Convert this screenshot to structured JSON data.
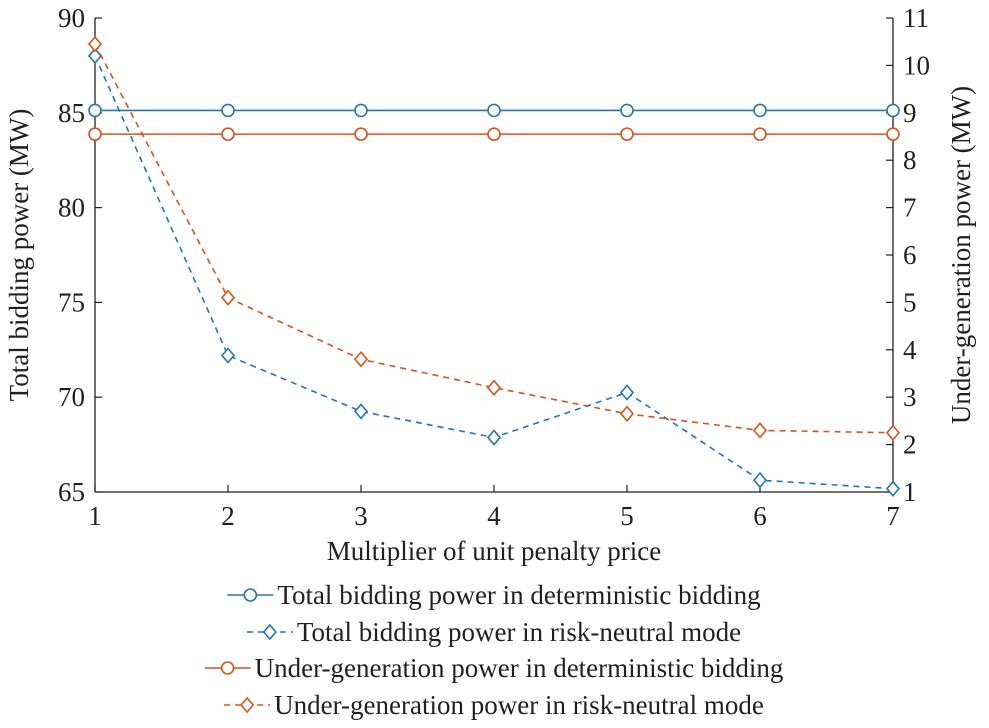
{
  "chart_data": {
    "type": "line",
    "xlabel": "Multiplier of unit penalty price",
    "ylabel_left": "Total bidding power (MW)",
    "ylabel_right": "Under-generation power (MW)",
    "x": [
      1,
      2,
      3,
      4,
      5,
      6,
      7
    ],
    "xlim": [
      1,
      7
    ],
    "ylim_left": [
      65,
      90
    ],
    "ylim_right": [
      1,
      11
    ],
    "x_ticks": [
      "1",
      "2",
      "3",
      "4",
      "5",
      "6",
      "7"
    ],
    "y_ticks_left": [
      "65",
      "70",
      "75",
      "80",
      "85",
      "90"
    ],
    "y_ticks_right": [
      "1",
      "2",
      "3",
      "4",
      "5",
      "6",
      "7",
      "8",
      "9",
      "10",
      "11"
    ],
    "grid": false,
    "legend_position": "bottom",
    "series": [
      {
        "name": "Total bidding power in deterministic bidding",
        "axis": "right",
        "style": "solid",
        "marker": "circle",
        "color": "#1f77b4",
        "values": [
          9.05,
          9.05,
          9.05,
          9.05,
          9.05,
          9.05,
          9.05
        ]
      },
      {
        "name": "Total bidding power in risk-neutral mode",
        "axis": "right",
        "style": "dashed",
        "marker": "diamond",
        "color": "#1f77b4",
        "values": [
          10.2,
          3.88,
          2.7,
          2.15,
          3.1,
          1.25,
          1.07
        ]
      },
      {
        "name": "Under-generation power in deterministic bidding",
        "axis": "right",
        "style": "solid",
        "marker": "circle",
        "color": "#d95319",
        "values": [
          8.55,
          8.55,
          8.55,
          8.55,
          8.55,
          8.55,
          8.55
        ]
      },
      {
        "name": "Under-generation power in risk-neutral mode",
        "axis": "right",
        "style": "dashed",
        "marker": "diamond",
        "color": "#d95319",
        "values": [
          10.45,
          5.1,
          3.8,
          3.2,
          2.65,
          2.3,
          2.25
        ]
      }
    ]
  }
}
